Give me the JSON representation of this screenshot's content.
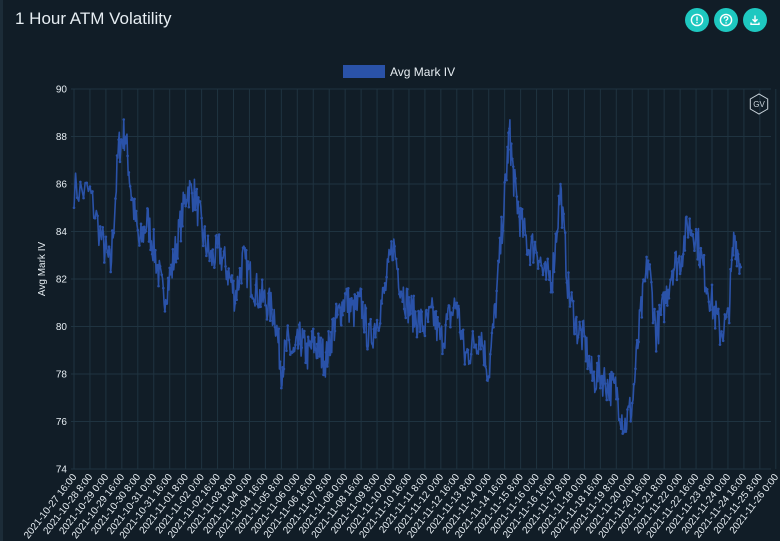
{
  "header": {
    "title": "1 Hour ATM Volatility",
    "buttons": [
      {
        "name": "info-button",
        "icon": "alert-icon"
      },
      {
        "name": "help-button",
        "icon": "question-icon"
      },
      {
        "name": "download-button",
        "icon": "download-icon"
      }
    ],
    "badge": "GV"
  },
  "colors": {
    "accent": "#1ec8c0",
    "series": "#2a52a8",
    "background": "#111d27",
    "grid": "#1f3340"
  },
  "chart_data": {
    "type": "line",
    "ylabel": "Avg Mark IV",
    "ylim": [
      74,
      90
    ],
    "yticks": [
      74,
      76,
      78,
      80,
      82,
      84,
      86,
      88,
      90
    ],
    "legend": "top-center",
    "grid": true,
    "x_tick_labels": [
      "2021-10-27 16:00",
      "2021-10-28 8:00",
      "2021-10-29 0:00",
      "2021-10-29 16:00",
      "2021-10-30 8:00",
      "2021-10-31 0:00",
      "2021-10-31 16:00",
      "2021-11-01 8:00",
      "2021-11-02 0:00",
      "2021-11-02 16:00",
      "2021-11-03 8:00",
      "2021-11-04 0:00",
      "2021-11-04 16:00",
      "2021-11-05 8:00",
      "2021-11-06 0:00",
      "2021-11-06 16:00",
      "2021-11-07 8:00",
      "2021-11-08 0:00",
      "2021-11-08 16:00",
      "2021-11-09 8:00",
      "2021-11-10 0:00",
      "2021-11-10 16:00",
      "2021-11-11 8:00",
      "2021-11-12 0:00",
      "2021-11-12 16:00",
      "2021-11-13 8:00",
      "2021-11-14 0:00",
      "2021-11-14 16:00",
      "2021-11-15 8:00",
      "2021-11-16 0:00",
      "2021-11-16 16:00",
      "2021-11-17 8:00",
      "2021-11-18 0:00",
      "2021-11-18 16:00",
      "2021-11-19 8:00",
      "2021-11-20 0:00",
      "2021-11-20 16:00",
      "2021-11-21 8:00",
      "2021-11-22 0:00",
      "2021-11-22 16:00",
      "2021-11-23 8:00",
      "2021-11-24 0:00",
      "2021-11-24 16:00",
      "2021-11-25 8:00",
      "2021-11-26 0:00"
    ],
    "series": [
      {
        "name": "Avg Mark IV",
        "anchors": [
          [
            0,
            85.8
          ],
          [
            1,
            85.6
          ],
          [
            1.8,
            83.5
          ],
          [
            2.3,
            82.5
          ],
          [
            2.8,
            87.5
          ],
          [
            3.2,
            88.2
          ],
          [
            3.6,
            85.6
          ],
          [
            4.1,
            83.4
          ],
          [
            4.6,
            84.5
          ],
          [
            5.1,
            83.0
          ],
          [
            5.6,
            81.2
          ],
          [
            6.1,
            82.3
          ],
          [
            6.6,
            84.0
          ],
          [
            7.1,
            85.8
          ],
          [
            7.6,
            85.5
          ],
          [
            8.1,
            83.8
          ],
          [
            8.6,
            82.8
          ],
          [
            9.1,
            83.2
          ],
          [
            9.6,
            82.4
          ],
          [
            10.1,
            81.3
          ],
          [
            10.6,
            82.8
          ],
          [
            11.1,
            82.0
          ],
          [
            11.6,
            81.3
          ],
          [
            12.1,
            81.0
          ],
          [
            12.6,
            80.5
          ],
          [
            13.0,
            78.2
          ],
          [
            13.4,
            79.3
          ],
          [
            13.8,
            78.7
          ],
          [
            14.2,
            79.5
          ],
          [
            14.6,
            78.8
          ],
          [
            15.0,
            79.3
          ],
          [
            15.4,
            79.0
          ],
          [
            15.8,
            78.6
          ],
          [
            16.2,
            79.8
          ],
          [
            16.6,
            80.5
          ],
          [
            17.0,
            81.2
          ],
          [
            17.5,
            80.6
          ],
          [
            18.0,
            81.0
          ],
          [
            18.5,
            79.4
          ],
          [
            19.0,
            80.3
          ],
          [
            19.5,
            81.5
          ],
          [
            20.0,
            83.5
          ],
          [
            20.5,
            81.7
          ],
          [
            21.0,
            80.8
          ],
          [
            21.5,
            80.3
          ],
          [
            22.0,
            80.0
          ],
          [
            22.5,
            80.5
          ],
          [
            23.0,
            79.4
          ],
          [
            23.5,
            80.3
          ],
          [
            24.0,
            81.0
          ],
          [
            24.5,
            78.7
          ],
          [
            25.0,
            79.2
          ],
          [
            25.5,
            79.7
          ],
          [
            26.0,
            78.0
          ],
          [
            26.5,
            81.3
          ],
          [
            27.0,
            85.5
          ],
          [
            27.3,
            88.2
          ],
          [
            27.6,
            86.0
          ],
          [
            28.0,
            84.4
          ],
          [
            28.5,
            83.3
          ],
          [
            29.0,
            83.4
          ],
          [
            29.5,
            82.0
          ],
          [
            30.0,
            82.2
          ],
          [
            30.5,
            85.8
          ],
          [
            31.0,
            81.5
          ],
          [
            31.5,
            80.0
          ],
          [
            32.0,
            79.4
          ],
          [
            32.5,
            77.8
          ],
          [
            33.0,
            78.0
          ],
          [
            33.5,
            77.5
          ],
          [
            34.0,
            77.3
          ],
          [
            34.5,
            75.8
          ],
          [
            35.0,
            76.7
          ],
          [
            35.5,
            80.3
          ],
          [
            36.0,
            82.8
          ],
          [
            36.5,
            79.7
          ],
          [
            37.0,
            80.9
          ],
          [
            37.5,
            82.5
          ],
          [
            38.0,
            82.8
          ],
          [
            38.5,
            84.3
          ],
          [
            39.0,
            83.9
          ],
          [
            39.5,
            82.3
          ],
          [
            40.0,
            81.0
          ],
          [
            40.5,
            79.8
          ],
          [
            41.0,
            80.2
          ],
          [
            41.4,
            83.9
          ],
          [
            41.8,
            82.5
          ]
        ]
      }
    ]
  }
}
